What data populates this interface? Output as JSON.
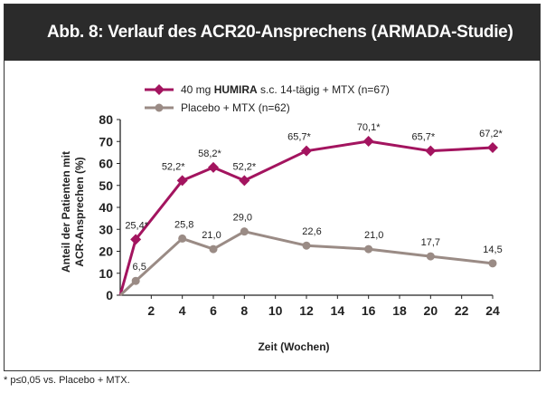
{
  "header": {
    "title": "Abb. 8:  Verlauf des ACR20-Ansprechens (ARMADA-Studie)"
  },
  "footnote": "* p≤0,05 vs. Placebo + MTX.",
  "colors": {
    "header_bg": "#2b2b2b",
    "humira": "#a3145f",
    "placebo": "#9a8b85",
    "axis": "#222222"
  },
  "chart_data": {
    "type": "line",
    "title": "",
    "xlabel": "Zeit (Wochen)",
    "ylabel_lines": [
      "Anteil der Patienten mit",
      "ACR-Ansprechen (%)"
    ],
    "xlim": [
      0,
      24
    ],
    "ylim": [
      0,
      80
    ],
    "x_ticks": [
      "2",
      "4",
      "6",
      "8",
      "10",
      "12",
      "14",
      "16",
      "18",
      "20",
      "22",
      "24"
    ],
    "y_ticks": [
      "0",
      "10",
      "20",
      "30",
      "40",
      "50",
      "60",
      "70",
      "80"
    ],
    "grid": false,
    "legend_position": "top-left",
    "series": [
      {
        "name_prefix": "40 mg ",
        "name_bold": "HUMIRA",
        "name_suffix": " s.c. 14-tägig + MTX (n=67)",
        "color": "#a3145f",
        "marker": "diamond",
        "x": [
          0,
          1,
          4,
          6,
          8,
          12,
          16,
          20,
          24
        ],
        "y": [
          0,
          25.4,
          52.2,
          58.2,
          52.2,
          65.7,
          70.1,
          65.7,
          67.2
        ],
        "labels": [
          "",
          "25,4*",
          "52,2*",
          "58,2*",
          "52,2*",
          "65,7*",
          "70,1*",
          "65,7*",
          "67,2*"
        ]
      },
      {
        "name": "Placebo + MTX (n=62)",
        "color": "#9a8b85",
        "marker": "circle",
        "x": [
          0,
          1,
          4,
          6,
          8,
          12,
          16,
          20,
          24
        ],
        "y": [
          0,
          6.5,
          25.8,
          21.0,
          29.0,
          22.6,
          21.0,
          17.7,
          14.5
        ],
        "labels": [
          "",
          "6,5",
          "25,8",
          "21,0",
          "29,0",
          "22,6",
          "21,0",
          "17,7",
          "14,5"
        ]
      }
    ]
  }
}
